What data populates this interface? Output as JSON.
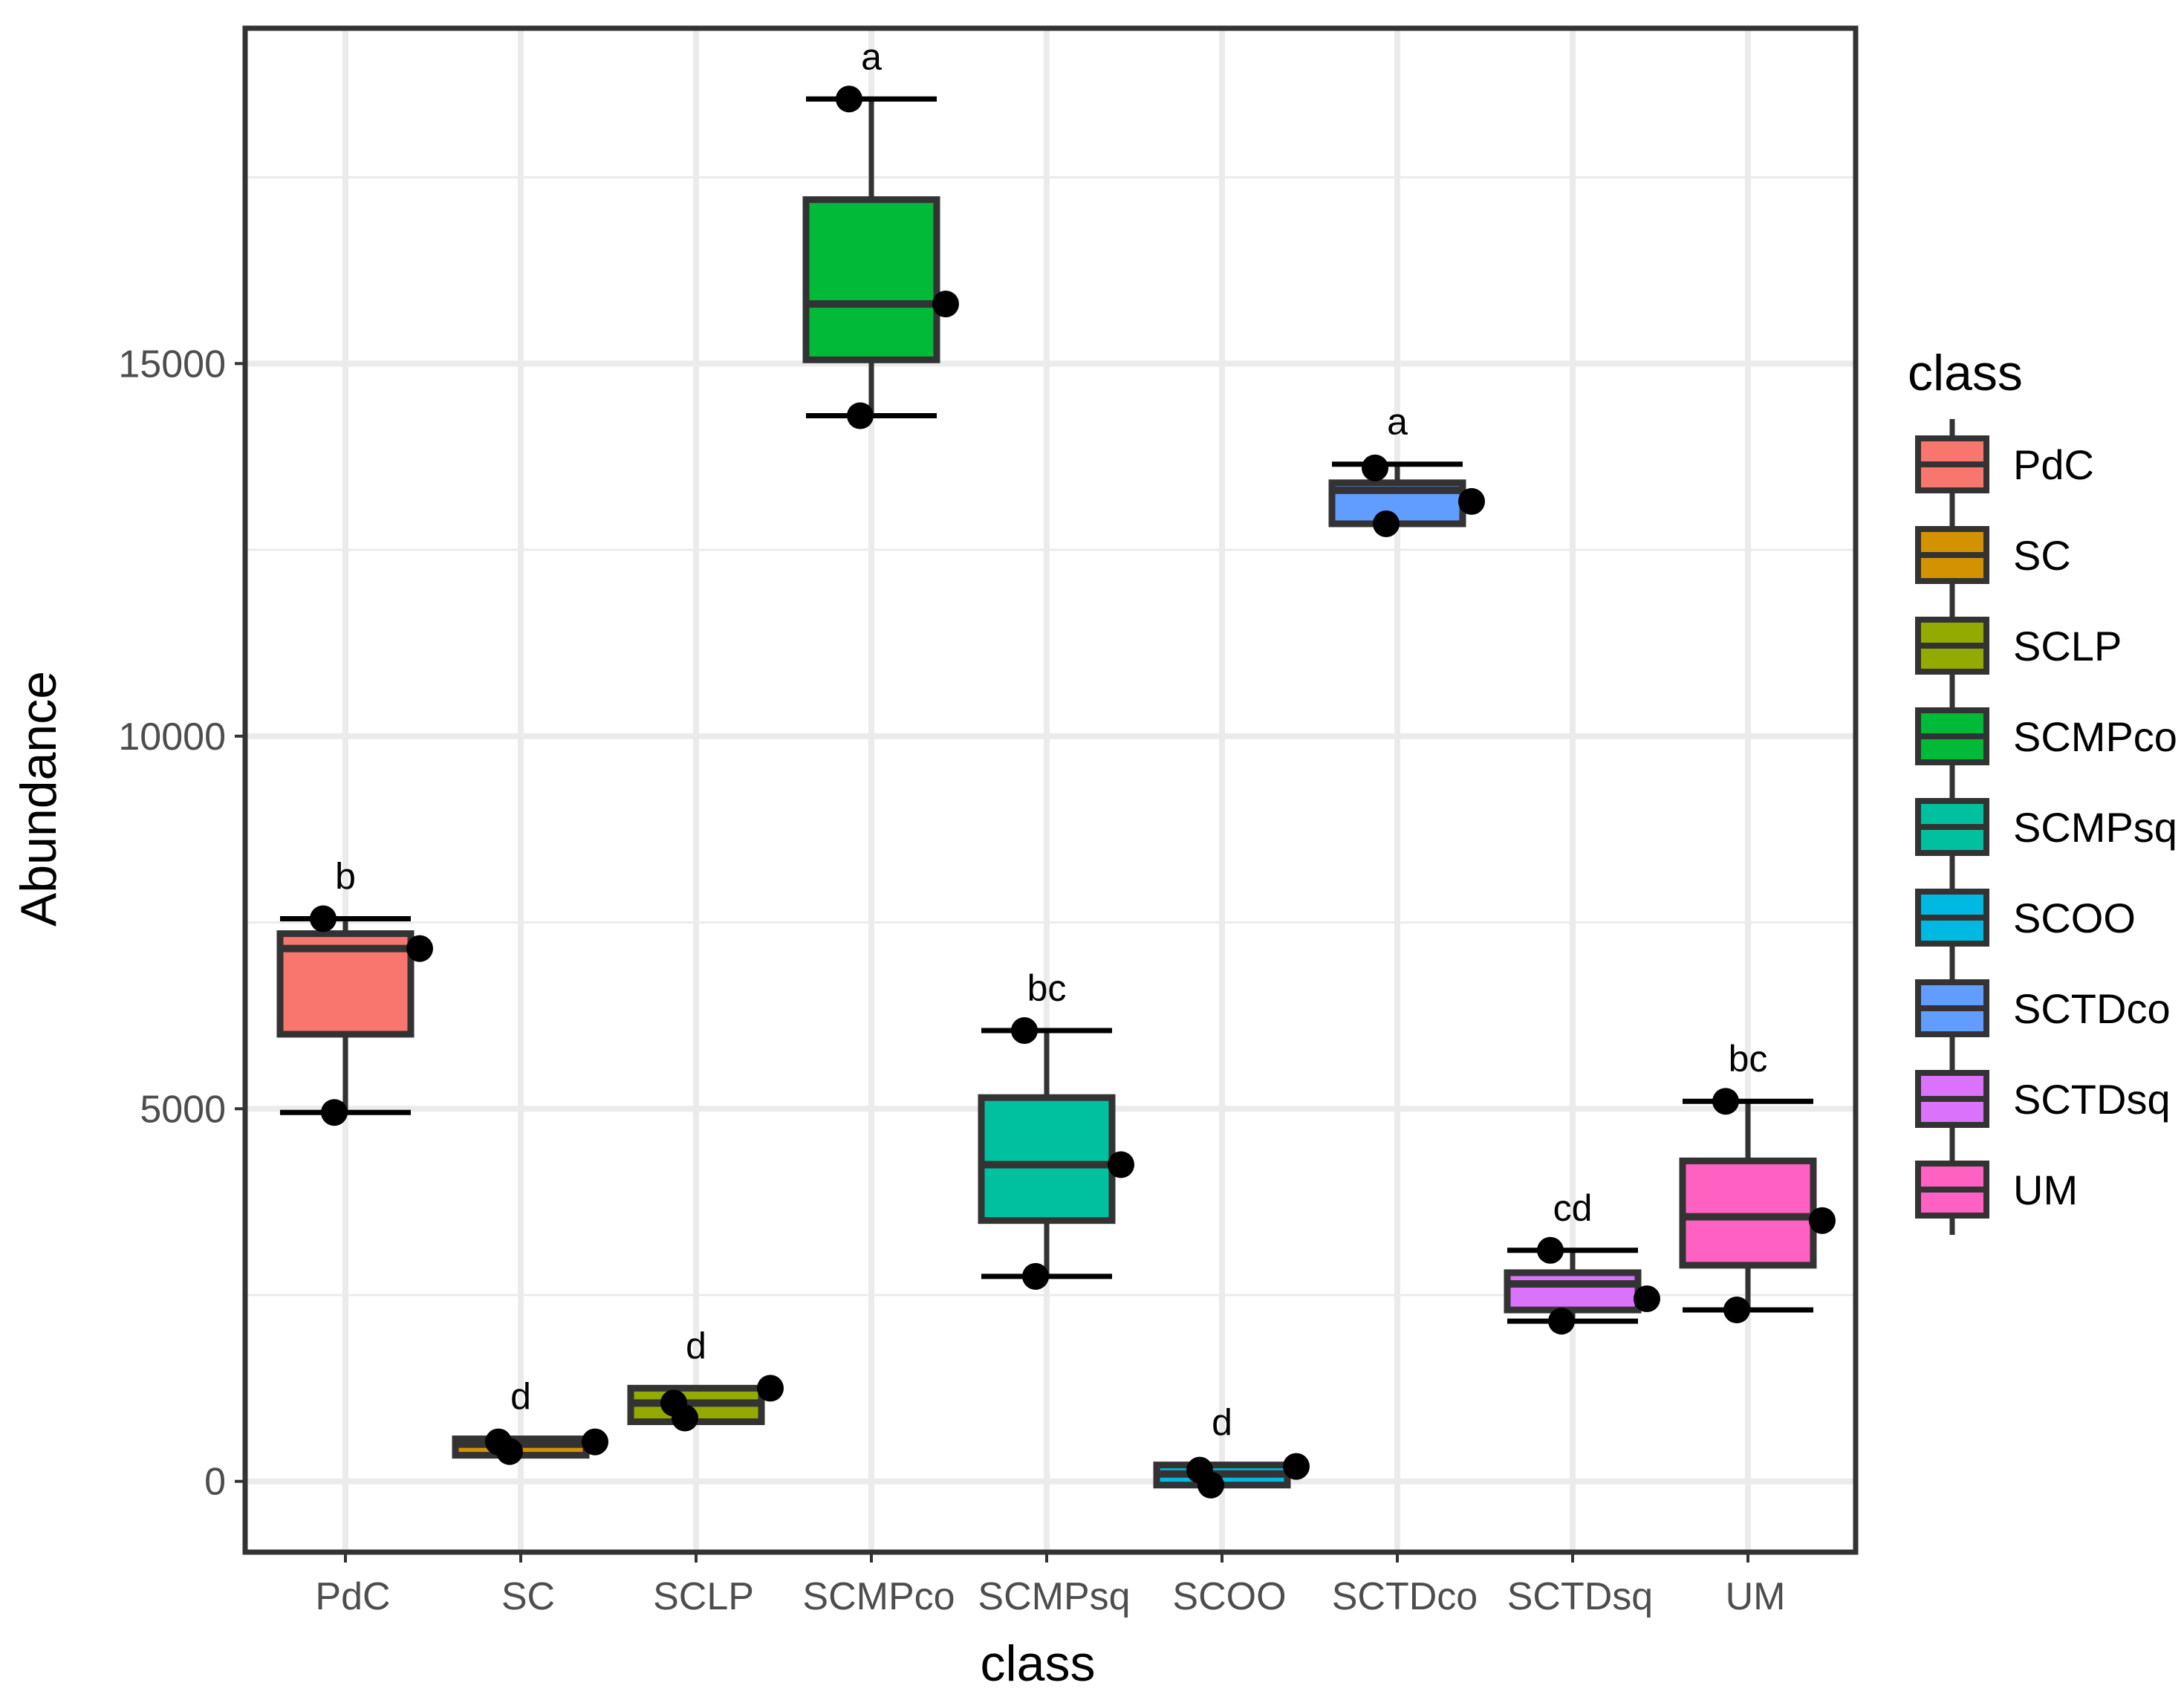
{
  "chart_data": {
    "type": "boxplot",
    "xlabel": "class",
    "ylabel": "Abundance",
    "ylim": [
      -950,
      19500
    ],
    "yticks": [
      0,
      5000,
      10000,
      15000
    ],
    "ytick_labels": [
      "0",
      "5000",
      "10000",
      "15000"
    ],
    "grid": true,
    "legend": {
      "title": "class",
      "position": "right"
    },
    "categories": [
      "PdC",
      "SC",
      "SCLP",
      "SCMPco",
      "SCMPsq",
      "SCOO",
      "SCTDco",
      "SCTDsq",
      "UM"
    ],
    "colors": [
      "#F8766D",
      "#D39200",
      "#93AA00",
      "#00BA38",
      "#00C19F",
      "#00B9E3",
      "#619CFF",
      "#DB72FB",
      "#FF61C3"
    ],
    "groups": [
      {
        "name": "PdC",
        "whisker_low": 4950,
        "q1": 6000,
        "median": 7150,
        "q3": 7350,
        "whisker_high": 7550,
        "points": [
          7550,
          7150,
          4950
        ],
        "letter": "b"
      },
      {
        "name": "SC",
        "whisker_low": 350,
        "q1": 350,
        "median": 500,
        "q3": 570,
        "whisker_high": 570,
        "points": [
          530,
          530,
          400
        ],
        "letter": "d"
      },
      {
        "name": "SCLP",
        "whisker_low": 800,
        "q1": 800,
        "median": 1050,
        "q3": 1250,
        "whisker_high": 1250,
        "points": [
          1050,
          1250,
          850
        ],
        "letter": "d"
      },
      {
        "name": "SCMPco",
        "whisker_low": 14300,
        "q1": 15050,
        "median": 15800,
        "q3": 17200,
        "whisker_high": 18550,
        "points": [
          18550,
          15800,
          14300
        ],
        "letter": "a"
      },
      {
        "name": "SCMPsq",
        "whisker_low": 2750,
        "q1": 3500,
        "median": 4250,
        "q3": 5150,
        "whisker_high": 6050,
        "points": [
          6050,
          4250,
          2750
        ],
        "letter": "bc"
      },
      {
        "name": "SCOO",
        "whisker_low": -50,
        "q1": -50,
        "median": 100,
        "q3": 220,
        "whisker_high": 220,
        "points": [
          150,
          200,
          -50
        ],
        "letter": "d"
      },
      {
        "name": "SCTDco",
        "whisker_low": 12850,
        "q1": 12850,
        "median": 13300,
        "q3": 13400,
        "whisker_high": 13650,
        "points": [
          13600,
          13150,
          12850
        ],
        "letter": "a"
      },
      {
        "name": "SCTDsq",
        "whisker_low": 2150,
        "q1": 2300,
        "median": 2650,
        "q3": 2800,
        "whisker_high": 3100,
        "points": [
          3100,
          2450,
          2150
        ],
        "letter": "cd"
      },
      {
        "name": "UM",
        "whisker_low": 2300,
        "q1": 2900,
        "median": 3550,
        "q3": 4300,
        "whisker_high": 5100,
        "points": [
          5100,
          3500,
          2300
        ],
        "letter": "bc"
      }
    ]
  }
}
